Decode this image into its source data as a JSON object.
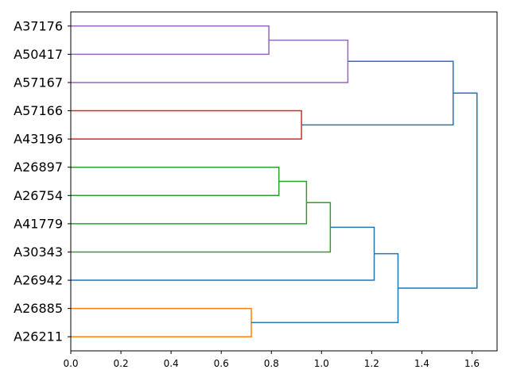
{
  "chart_data": {
    "type": "dendrogram",
    "orientation": "horizontal",
    "xlim": [
      0,
      1.7
    ],
    "x_ticks": [
      0.0,
      0.2,
      0.4,
      0.6,
      0.8,
      1.0,
      1.2,
      1.4,
      1.6
    ],
    "x_tick_labels": [
      "0.0",
      "0.2",
      "0.4",
      "0.6",
      "0.8",
      "1.0",
      "1.2",
      "1.4",
      "1.6"
    ],
    "leaves": [
      "A37176",
      "A50417",
      "A57167",
      "A57166",
      "A43196",
      "A26897",
      "A26754",
      "A41779",
      "A30343",
      "A26942",
      "A26885",
      "A26211"
    ],
    "colors": {
      "purple": "#9467bd",
      "red": "#d62728",
      "green": "#2ca02c",
      "orange": "#ff7f0e",
      "blue": "#1f77b4"
    },
    "merges": [
      {
        "left": 0,
        "right": 1,
        "height": 0.79,
        "color": "purple"
      },
      {
        "left": "m0",
        "right": 2,
        "height": 1.105,
        "color": "purple"
      },
      {
        "left": 3,
        "right": 4,
        "height": 0.92,
        "color": "red"
      },
      {
        "left": "m1",
        "right": "m2",
        "height": 1.525,
        "color": "blue"
      },
      {
        "left": 5,
        "right": 6,
        "height": 0.83,
        "color": "green"
      },
      {
        "left": "m4",
        "right": 7,
        "height": 0.94,
        "color": "green"
      },
      {
        "left": "m5",
        "right": 8,
        "height": 1.035,
        "color": "green"
      },
      {
        "left": "m6",
        "right": 9,
        "height": 1.21,
        "color": "blue"
      },
      {
        "left": 10,
        "right": 11,
        "height": 0.72,
        "color": "orange"
      },
      {
        "left": "m7",
        "right": "m8",
        "height": 1.305,
        "color": "blue"
      },
      {
        "left": "m3",
        "right": "m9",
        "height": 1.62,
        "color": "blue"
      }
    ]
  }
}
